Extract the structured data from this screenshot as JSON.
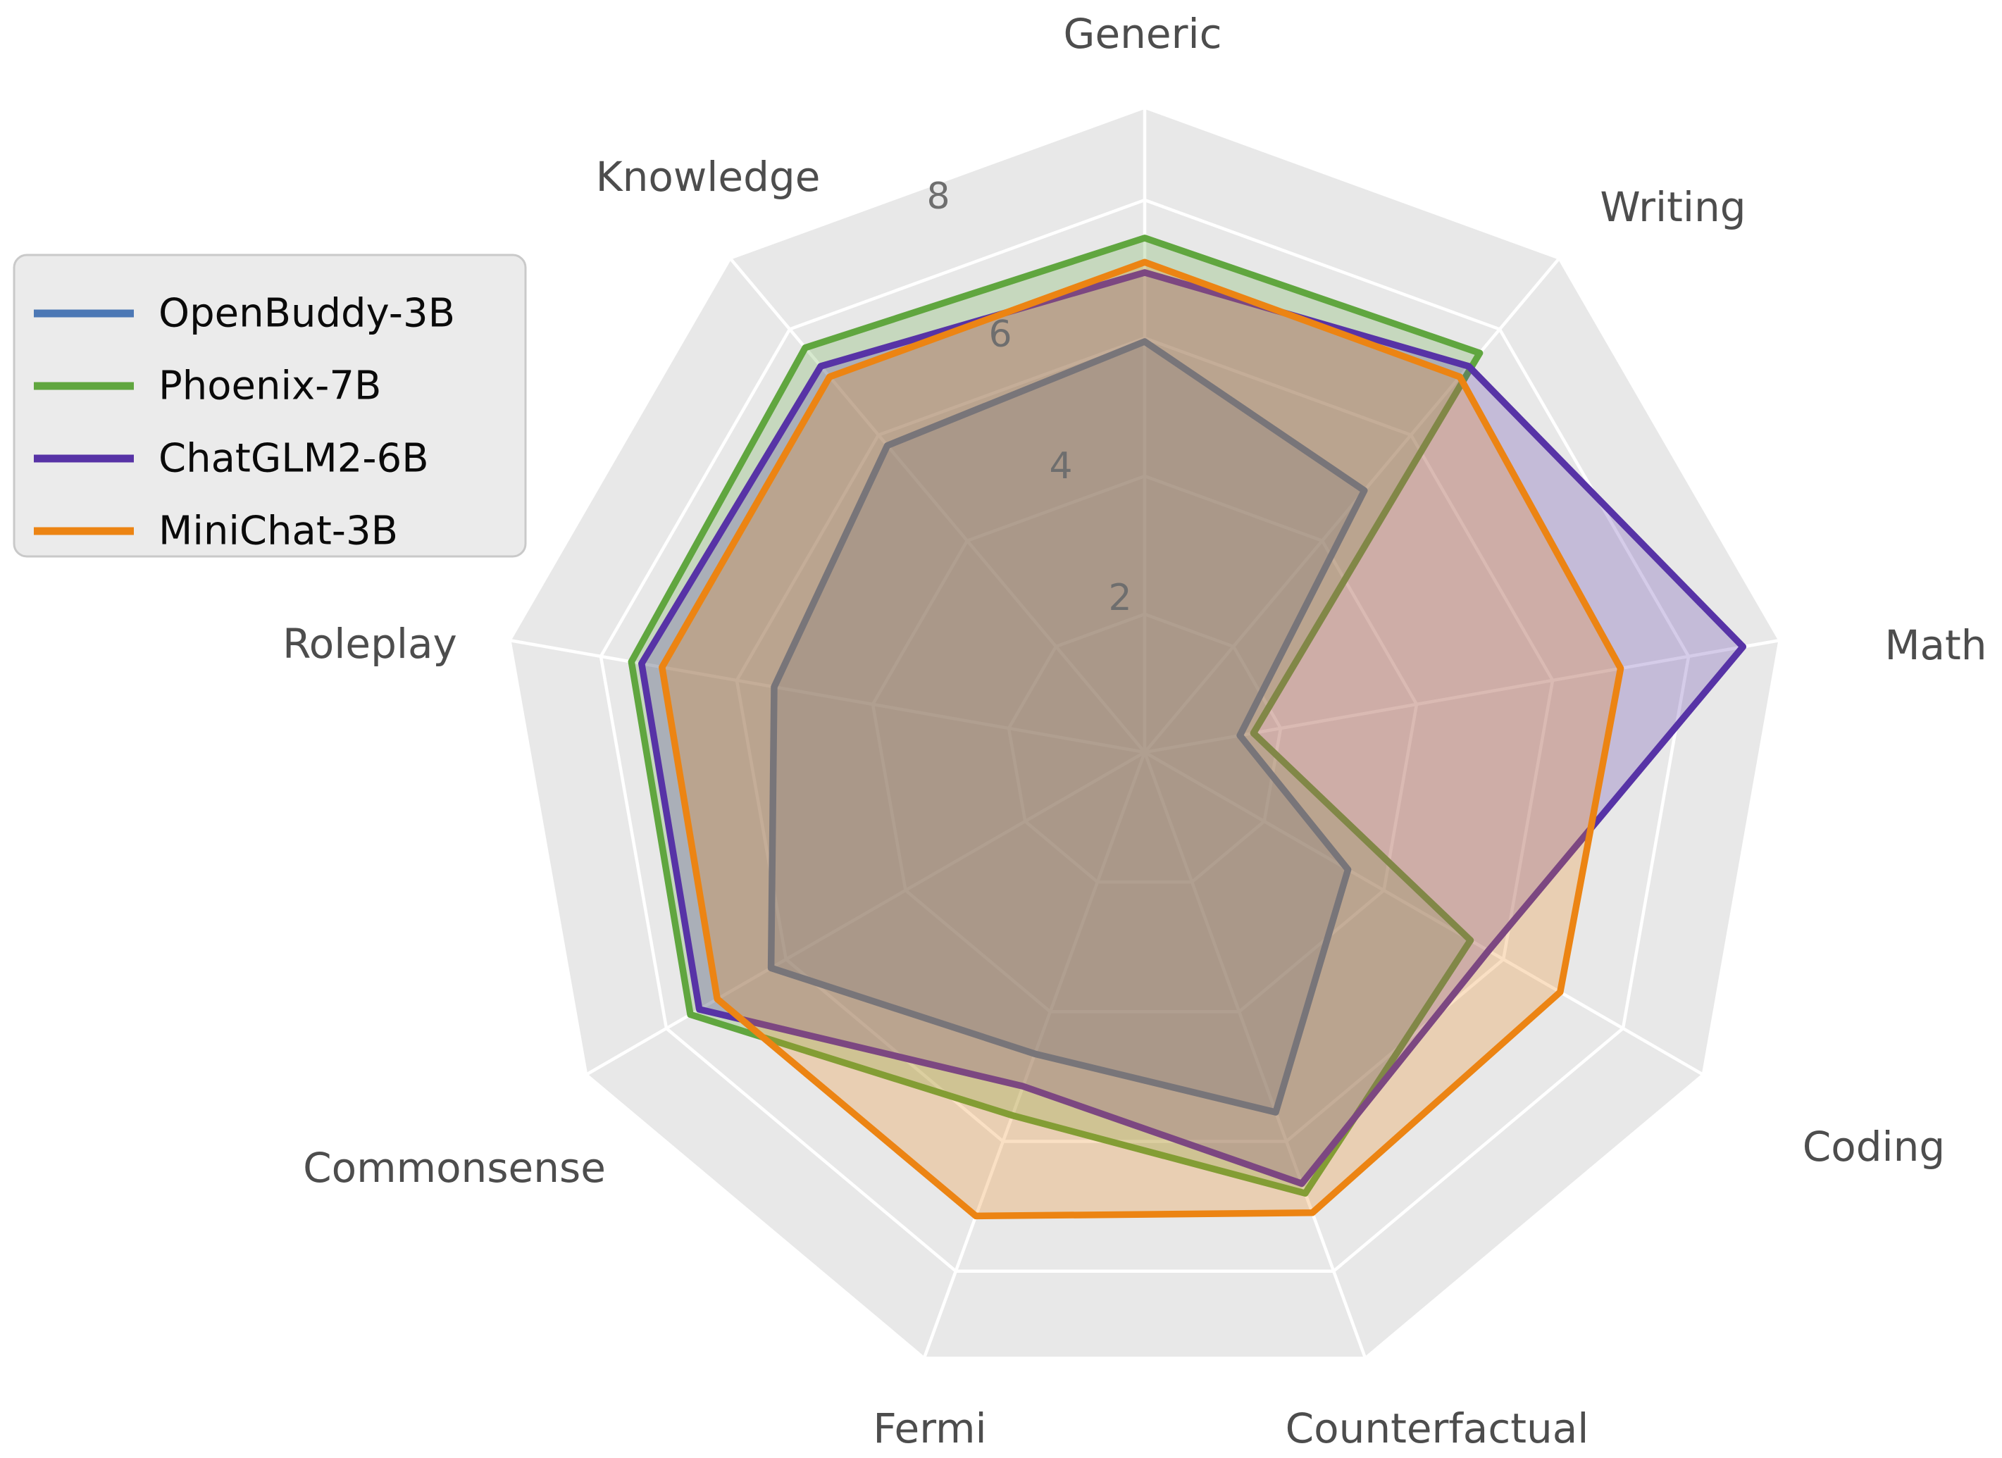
{
  "figure": {
    "background": "#FFFFFF",
    "plot_background": "#E8E8E8",
    "grid_color": "#FFFFFF",
    "axis_label_color": "#4D4D4D",
    "tick_label_color": "#6E6E6E"
  },
  "legend": {
    "background": "#EBEBEB",
    "border_color": "#C9C9C9",
    "position": "upper left"
  },
  "chart_data": {
    "type": "radar",
    "title": "",
    "categories": [
      "Generic",
      "Writing",
      "Math",
      "Coding",
      "Counterfactual",
      "Fermi",
      "Commonsense",
      "Roleplay",
      "Knowledge"
    ],
    "r_ticks": [
      2,
      4,
      6,
      8
    ],
    "r_max": 9.34,
    "grid": true,
    "legend_position": "upper left",
    "fill_opacity": 0.25,
    "series": [
      {
        "name": "OpenBuddy-3B",
        "color": "#4C78B5",
        "values": [
          5.95,
          4.95,
          1.4,
          3.4,
          5.55,
          4.65,
          6.25,
          5.45,
          5.8
        ]
      },
      {
        "name": "Phoenix-7B",
        "color": "#60A63F",
        "values": [
          7.45,
          7.55,
          1.6,
          5.45,
          6.8,
          5.6,
          7.6,
          7.55,
          7.65
        ]
      },
      {
        "name": "ChatGLM2-6B",
        "color": "#5733A6",
        "values": [
          6.95,
          7.3,
          8.8,
          5.75,
          6.65,
          5.15,
          7.45,
          7.4,
          7.3
        ]
      },
      {
        "name": "MiniChat-3B",
        "color": "#EC8413",
        "values": [
          7.1,
          7.1,
          7.0,
          6.95,
          7.1,
          7.15,
          7.15,
          7.1,
          7.1
        ]
      }
    ]
  }
}
